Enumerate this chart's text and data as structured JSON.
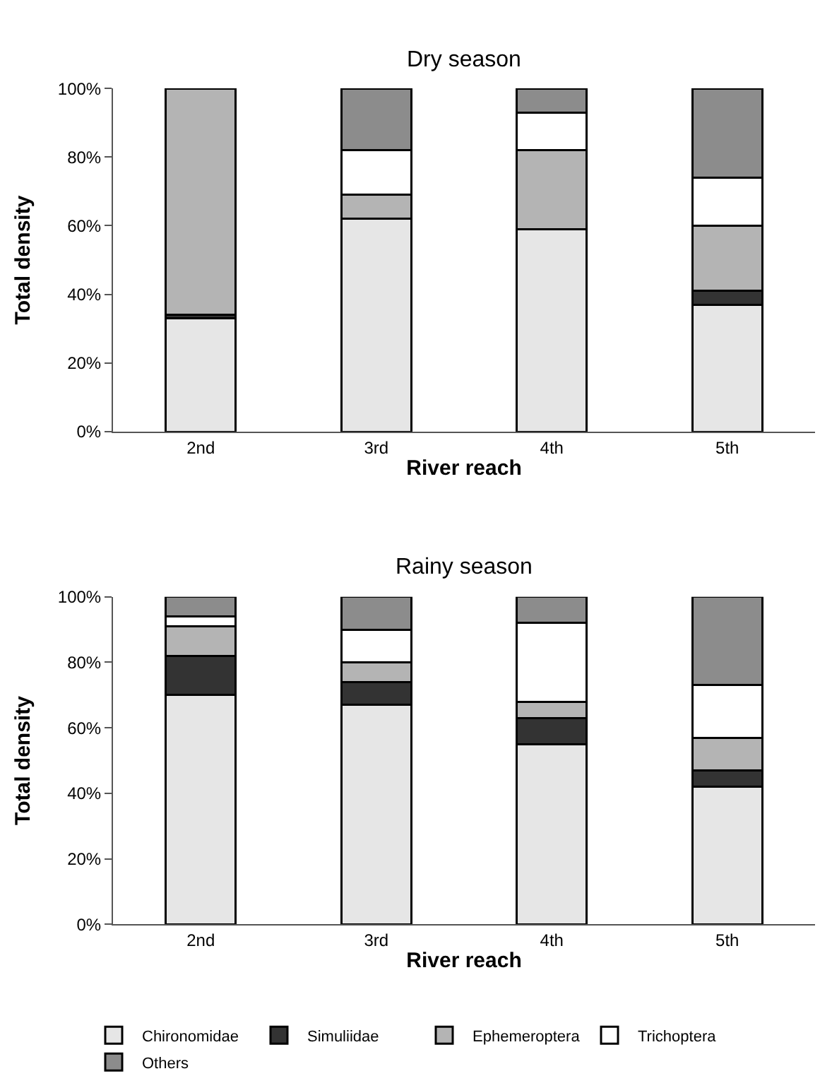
{
  "chart_data": [
    {
      "type": "bar",
      "stacked": true,
      "title": "Dry season",
      "xlabel": "River reach",
      "ylabel": "Total density",
      "categories": [
        "2nd",
        "3rd",
        "4th",
        "5th"
      ],
      "ylim": [
        0,
        100
      ],
      "yticks": [
        {
          "value": 0,
          "label": "0%"
        },
        {
          "value": 20,
          "label": "20%"
        },
        {
          "value": 40,
          "label": "40%"
        },
        {
          "value": 60,
          "label": "60%"
        },
        {
          "value": 80,
          "label": "80%"
        },
        {
          "value": 100,
          "label": "100%"
        }
      ],
      "legend": "bottom",
      "grid": false,
      "series": [
        {
          "name": "Chironomidae",
          "color": "#e6e6e6",
          "values": [
            33,
            62,
            59,
            37
          ]
        },
        {
          "name": "Simuliidae",
          "color": "#333333",
          "values": [
            1,
            0,
            0,
            4
          ]
        },
        {
          "name": "Ephemeroptera",
          "color": "#b4b4b4",
          "values": [
            66,
            7,
            23,
            19
          ]
        },
        {
          "name": "Trichoptera",
          "color": "#ffffff",
          "values": [
            0,
            13,
            11,
            14
          ]
        },
        {
          "name": "Others",
          "color": "#8c8c8c",
          "values": [
            0,
            18,
            7,
            26
          ]
        }
      ]
    },
    {
      "type": "bar",
      "stacked": true,
      "title": "Rainy season",
      "xlabel": "River reach",
      "ylabel": "Total density",
      "categories": [
        "2nd",
        "3rd",
        "4th",
        "5th"
      ],
      "ylim": [
        0,
        100
      ],
      "yticks": [
        {
          "value": 0,
          "label": "0%"
        },
        {
          "value": 20,
          "label": "20%"
        },
        {
          "value": 40,
          "label": "40%"
        },
        {
          "value": 60,
          "label": "60%"
        },
        {
          "value": 80,
          "label": "80%"
        },
        {
          "value": 100,
          "label": "100%"
        }
      ],
      "legend": "bottom",
      "grid": false,
      "series": [
        {
          "name": "Chironomidae",
          "color": "#e6e6e6",
          "values": [
            70,
            67,
            55,
            42
          ]
        },
        {
          "name": "Simuliidae",
          "color": "#333333",
          "values": [
            12,
            7,
            8,
            5
          ]
        },
        {
          "name": "Ephemeroptera",
          "color": "#b4b4b4",
          "values": [
            9,
            6,
            5,
            10
          ]
        },
        {
          "name": "Trichoptera",
          "color": "#ffffff",
          "values": [
            3,
            10,
            24,
            16
          ]
        },
        {
          "name": "Others",
          "color": "#8c8c8c",
          "values": [
            6,
            10,
            8,
            27
          ]
        }
      ]
    }
  ]
}
